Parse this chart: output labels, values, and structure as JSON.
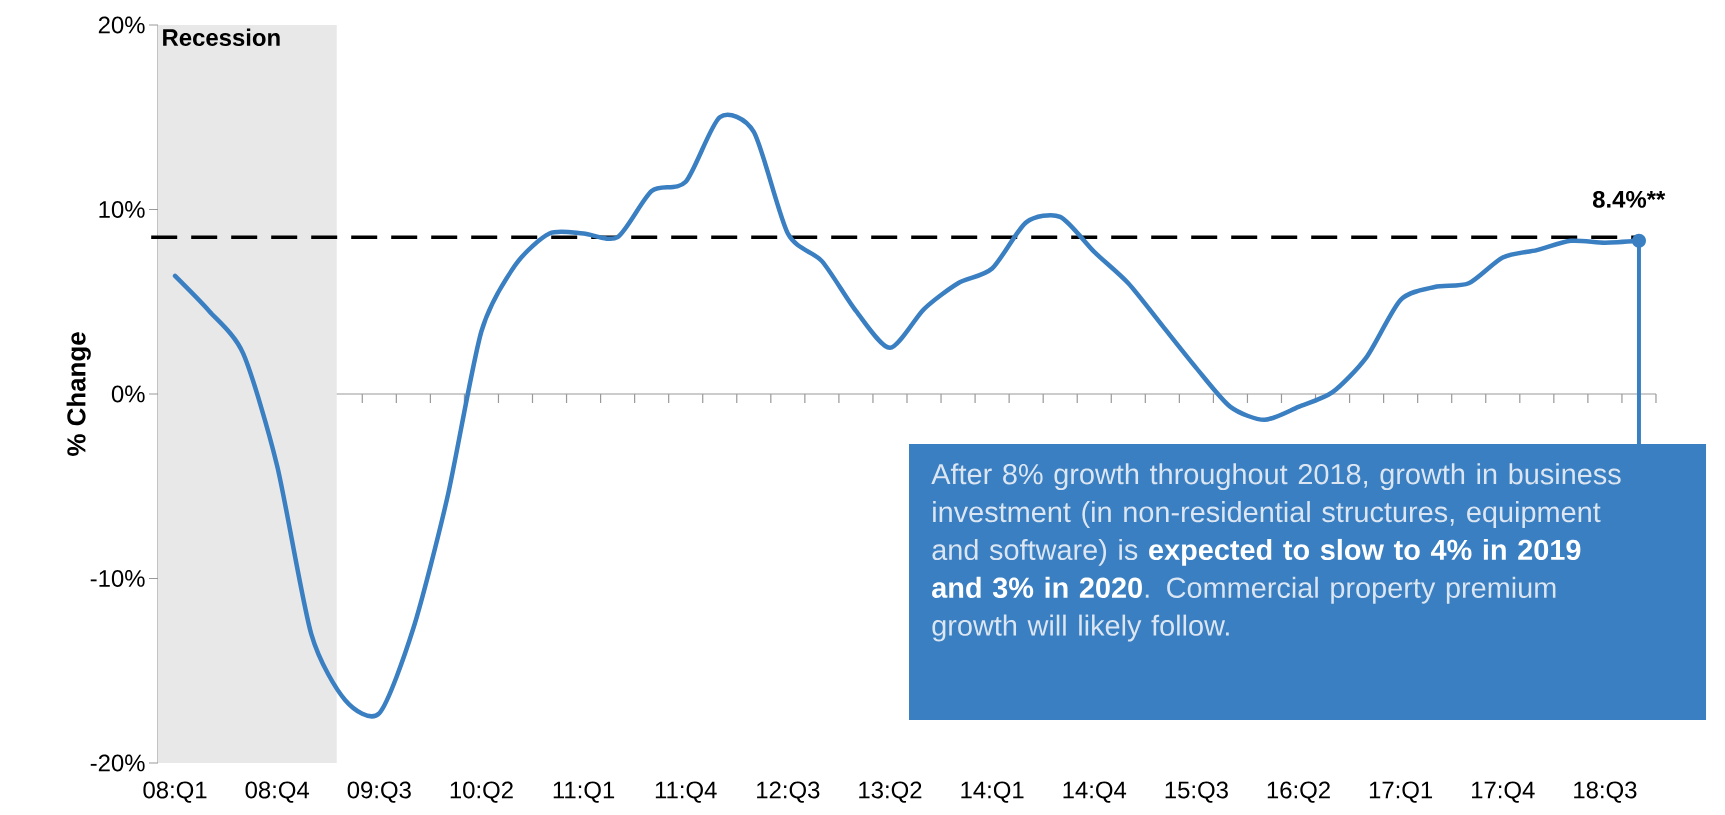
{
  "chart_data": {
    "type": "line",
    "ylabel": "% Change",
    "categories": [
      "08:Q1",
      null,
      null,
      "08:Q4",
      null,
      null,
      "09:Q3",
      null,
      null,
      "10:Q2",
      null,
      null,
      "11:Q1",
      null,
      null,
      "11:Q4",
      null,
      null,
      "12:Q3",
      null,
      null,
      "13:Q2",
      null,
      null,
      "14:Q1",
      null,
      null,
      "14:Q4",
      null,
      null,
      "15:Q3",
      null,
      null,
      "16:Q2",
      null,
      null,
      "17:Q1",
      null,
      null,
      "17:Q4",
      null,
      null,
      "18:Q3",
      null
    ],
    "series": [
      {
        "color": "#3a7fc1",
        "values": [
          6.4,
          4.5,
          2.2,
          -3.9,
          -13.0,
          -16.6,
          -17.3,
          -12.7,
          -5.6,
          3.4,
          7.0,
          8.7,
          8.7,
          8.5,
          11.0,
          11.5,
          15.0,
          14.2,
          8.7,
          7.2,
          4.5,
          2.5,
          4.6,
          6.0,
          6.8,
          9.3,
          9.6,
          7.7,
          6.0,
          3.7,
          1.4,
          -0.7,
          -1.4,
          -0.7,
          0.1,
          2.0,
          5.1,
          5.8,
          6.0,
          7.4,
          7.8,
          8.3,
          8.2,
          8.3
        ]
      }
    ],
    "ylim": [
      -20,
      20
    ],
    "yticks": [
      {
        "value": -20,
        "label": "-20%"
      },
      {
        "value": -10,
        "label": "-10%"
      },
      {
        "value": 0,
        "label": "0%"
      },
      {
        "value": 10,
        "label": "10%"
      },
      {
        "value": 20,
        "label": "20%"
      }
    ],
    "ref_lines": [
      {
        "axis": "y",
        "value": 8.5,
        "color": "#000000",
        "line_style": "dashed"
      }
    ],
    "annotations": [
      "8.4%**",
      "Recession",
      "After 8% growth throughout 2018, growth in business investment (in non-residential structures, equipment and software) is **expected to slow to 4% in 2019 and 3% in 2020**. Commercial property premium growth will likely follow."
    ]
  }
}
